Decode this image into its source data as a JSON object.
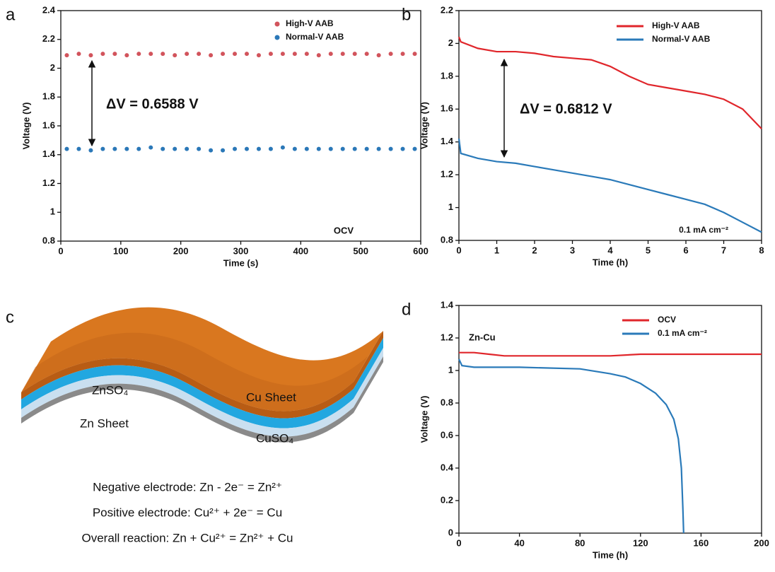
{
  "chart_data": [
    {
      "type": "scatter",
      "panel": "a",
      "xlabel": "Time (s)",
      "ylabel": "Voltage (V)",
      "xlim": [
        0,
        600
      ],
      "xticks": [
        0,
        100,
        200,
        300,
        400,
        500,
        600
      ],
      "ylim": [
        0.8,
        2.4
      ],
      "yticks": [
        0.8,
        1,
        1.2,
        1.4,
        1.6,
        1.8,
        2,
        2.2,
        2.4
      ],
      "annotations": [
        "ΔV = 0.6588 V",
        "OCV"
      ],
      "series": [
        {
          "name": "High-V AAB",
          "color": "#d2545c",
          "x": [
            10,
            30,
            50,
            70,
            90,
            110,
            130,
            150,
            170,
            190,
            210,
            230,
            250,
            270,
            290,
            310,
            330,
            350,
            370,
            390,
            410,
            430,
            450,
            470,
            490,
            510,
            530,
            550,
            570,
            590
          ],
          "values": [
            2.09,
            2.1,
            2.09,
            2.1,
            2.1,
            2.09,
            2.1,
            2.1,
            2.1,
            2.09,
            2.1,
            2.1,
            2.09,
            2.1,
            2.1,
            2.1,
            2.09,
            2.1,
            2.1,
            2.1,
            2.1,
            2.09,
            2.1,
            2.1,
            2.1,
            2.1,
            2.09,
            2.1,
            2.1,
            2.1
          ]
        },
        {
          "name": "Normal-V AAB",
          "color": "#2b78b8",
          "x": [
            10,
            30,
            50,
            70,
            90,
            110,
            130,
            150,
            170,
            190,
            210,
            230,
            250,
            270,
            290,
            310,
            330,
            350,
            370,
            390,
            410,
            430,
            450,
            470,
            490,
            510,
            530,
            550,
            570,
            590
          ],
          "values": [
            1.44,
            1.44,
            1.43,
            1.44,
            1.44,
            1.44,
            1.44,
            1.45,
            1.44,
            1.44,
            1.44,
            1.44,
            1.43,
            1.43,
            1.44,
            1.44,
            1.44,
            1.44,
            1.45,
            1.44,
            1.44,
            1.44,
            1.44,
            1.44,
            1.44,
            1.44,
            1.44,
            1.44,
            1.44,
            1.44
          ]
        }
      ]
    },
    {
      "type": "line",
      "panel": "b",
      "xlabel": "Time (h)",
      "ylabel": "Voltage (V)",
      "xlim": [
        0,
        8
      ],
      "xticks": [
        0,
        1,
        2,
        3,
        4,
        5,
        6,
        7,
        8
      ],
      "ylim": [
        0.8,
        2.2
      ],
      "yticks": [
        0.8,
        1,
        1.2,
        1.4,
        1.6,
        1.8,
        2,
        2.2
      ],
      "annotations": [
        "ΔV = 0.6812 V",
        "0.1 mA cm⁻²"
      ],
      "series": [
        {
          "name": "High-V AAB",
          "color": "#e0262b",
          "x": [
            0,
            0.05,
            0.5,
            1,
            1.5,
            2,
            2.5,
            3,
            3.5,
            4,
            4.5,
            5,
            5.5,
            6,
            6.5,
            7,
            7.5,
            8
          ],
          "values": [
            2.04,
            2.01,
            1.97,
            1.95,
            1.95,
            1.94,
            1.92,
            1.91,
            1.9,
            1.86,
            1.8,
            1.75,
            1.73,
            1.71,
            1.69,
            1.66,
            1.6,
            1.48
          ]
        },
        {
          "name": "Normal-V AAB",
          "color": "#2a7ab9",
          "x": [
            0,
            0.05,
            0.5,
            1,
            1.5,
            2,
            2.5,
            3,
            3.5,
            4,
            4.5,
            5,
            5.5,
            6,
            6.5,
            7,
            7.5,
            8
          ],
          "values": [
            1.42,
            1.33,
            1.3,
            1.28,
            1.27,
            1.25,
            1.23,
            1.21,
            1.19,
            1.17,
            1.14,
            1.11,
            1.08,
            1.05,
            1.02,
            0.97,
            0.91,
            0.85
          ]
        }
      ]
    },
    {
      "type": "line",
      "panel": "d",
      "xlabel": "Time (h)",
      "ylabel": "Voltage (V)",
      "xlim": [
        0,
        200
      ],
      "xticks": [
        0,
        40,
        80,
        120,
        160,
        200
      ],
      "ylim": [
        0,
        1.4
      ],
      "yticks": [
        0,
        0.2,
        0.4,
        0.6,
        0.8,
        1,
        1.2,
        1.4
      ],
      "annotations": [
        "Zn-Cu"
      ],
      "series": [
        {
          "name": "OCV",
          "color": "#e0262b",
          "x": [
            0,
            10,
            20,
            30,
            40,
            60,
            80,
            100,
            120,
            140,
            160,
            180,
            200
          ],
          "values": [
            1.11,
            1.11,
            1.1,
            1.09,
            1.09,
            1.09,
            1.09,
            1.09,
            1.1,
            1.1,
            1.1,
            1.1,
            1.1
          ]
        },
        {
          "name": "0.1 mA cm⁻²",
          "color": "#2a7ab9",
          "x": [
            0,
            2,
            10,
            40,
            80,
            100,
            110,
            120,
            130,
            137,
            142,
            145,
            147,
            148,
            148.5
          ],
          "values": [
            1.07,
            1.03,
            1.02,
            1.02,
            1.01,
            0.98,
            0.96,
            0.92,
            0.86,
            0.79,
            0.7,
            0.58,
            0.4,
            0.15,
            0
          ]
        }
      ]
    }
  ],
  "diagram": {
    "panel": "c",
    "labels": [
      "ZnSO₄",
      "Cu Sheet",
      "Zn Sheet",
      "CuSO₄"
    ],
    "equations": [
      "Negative electrode: Zn - 2e⁻ = Zn²⁺",
      "Positive electrode: Cu²⁺ + 2e⁻ = Cu",
      "Overall reaction: Zn + Cu²⁺ = Zn²⁺ + Cu"
    ]
  }
}
